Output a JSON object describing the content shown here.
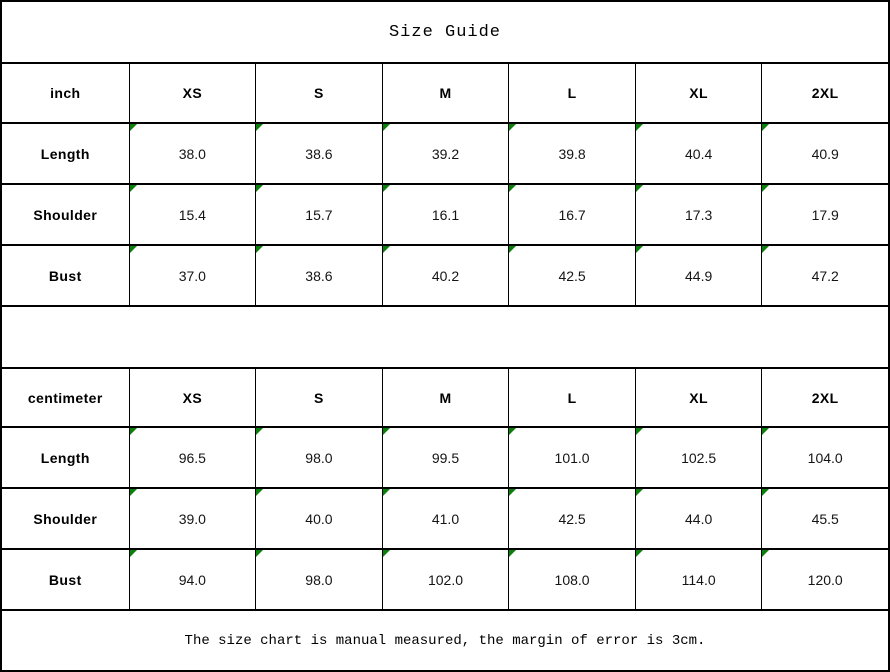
{
  "title": "Size Guide",
  "footer_note": "The size chart is manual measured, the margin of error is 3cm.",
  "colors": {
    "border": "#000000",
    "corner_flag_green": "#0a800a",
    "text": "#000000",
    "background": "#ffffff"
  },
  "tables": [
    {
      "unit": "inch",
      "sizes": [
        "XS",
        "S",
        "M",
        "L",
        "XL",
        "2XL"
      ],
      "rows": [
        {
          "label": "Length",
          "values": [
            "38.0",
            "38.6",
            "39.2",
            "39.8",
            "40.4",
            "40.9"
          ]
        },
        {
          "label": "Shoulder",
          "values": [
            "15.4",
            "15.7",
            "16.1",
            "16.7",
            "17.3",
            "17.9"
          ]
        },
        {
          "label": "Bust",
          "values": [
            "37.0",
            "38.6",
            "40.2",
            "42.5",
            "44.9",
            "47.2"
          ]
        }
      ]
    },
    {
      "unit": "centimeter",
      "sizes": [
        "XS",
        "S",
        "M",
        "L",
        "XL",
        "2XL"
      ],
      "rows": [
        {
          "label": "Length",
          "values": [
            "96.5",
            "98.0",
            "99.5",
            "101.0",
            "102.5",
            "104.0"
          ]
        },
        {
          "label": "Shoulder",
          "values": [
            "39.0",
            "40.0",
            "41.0",
            "42.5",
            "44.0",
            "45.5"
          ]
        },
        {
          "label": "Bust",
          "values": [
            "94.0",
            "98.0",
            "102.0",
            "108.0",
            "114.0",
            "120.0"
          ]
        }
      ]
    }
  ],
  "chart_data": [
    {
      "type": "table",
      "title": "Size Guide",
      "columns": [
        "inch",
        "XS",
        "S",
        "M",
        "L",
        "XL",
        "2XL"
      ],
      "rows": [
        [
          "Length",
          38.0,
          38.6,
          39.2,
          39.8,
          40.4,
          40.9
        ],
        [
          "Shoulder",
          15.4,
          15.7,
          16.1,
          16.7,
          17.3,
          17.9
        ],
        [
          "Bust",
          37.0,
          38.6,
          40.2,
          42.5,
          44.9,
          47.2
        ]
      ]
    },
    {
      "type": "table",
      "title": "Size Guide",
      "columns": [
        "centimeter",
        "XS",
        "S",
        "M",
        "L",
        "XL",
        "2XL"
      ],
      "rows": [
        [
          "Length",
          96.5,
          98.0,
          99.5,
          101.0,
          102.5,
          104.0
        ],
        [
          "Shoulder",
          39.0,
          40.0,
          41.0,
          42.5,
          44.0,
          45.5
        ],
        [
          "Bust",
          94.0,
          98.0,
          102.0,
          108.0,
          114.0,
          120.0
        ]
      ],
      "annotation": "The size chart is manual measured, the margin of error is 3cm."
    }
  ]
}
